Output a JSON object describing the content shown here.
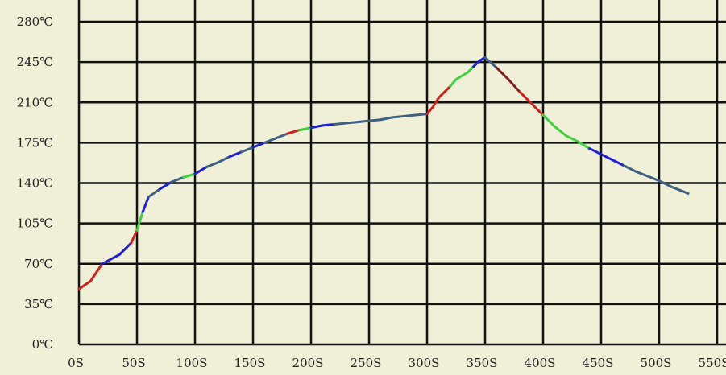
{
  "chart_data": {
    "type": "line",
    "title": "",
    "xlabel": "",
    "ylabel": "",
    "xlim": [
      0,
      550
    ],
    "ylim": [
      0,
      280
    ],
    "grid": true,
    "background": "#f0f0d8",
    "grid_color": "#111111",
    "x_ticks": [
      {
        "value": 0,
        "label": "0S"
      },
      {
        "value": 50,
        "label": "50S"
      },
      {
        "value": 100,
        "label": "100S"
      },
      {
        "value": 150,
        "label": "150S"
      },
      {
        "value": 200,
        "label": "200S"
      },
      {
        "value": 250,
        "label": "250S"
      },
      {
        "value": 300,
        "label": "300S"
      },
      {
        "value": 350,
        "label": "350S"
      },
      {
        "value": 400,
        "label": "400S"
      },
      {
        "value": 450,
        "label": "450S"
      },
      {
        "value": 500,
        "label": "500S"
      },
      {
        "value": 550,
        "label": "550S"
      }
    ],
    "y_ticks": [
      {
        "value": 0,
        "label": "0℃"
      },
      {
        "value": 35,
        "label": "35℃"
      },
      {
        "value": 70,
        "label": "70℃"
      },
      {
        "value": 105,
        "label": "105℃"
      },
      {
        "value": 140,
        "label": "140℃"
      },
      {
        "value": 175,
        "label": "175℃"
      },
      {
        "value": 210,
        "label": "210℃"
      },
      {
        "value": 245,
        "label": "245℃"
      },
      {
        "value": 280,
        "label": "280℃"
      }
    ],
    "x": [
      0,
      10,
      20,
      35,
      45,
      50,
      55,
      60,
      70,
      80,
      90,
      100,
      110,
      120,
      130,
      140,
      150,
      160,
      170,
      180,
      190,
      200,
      210,
      220,
      230,
      240,
      250,
      260,
      270,
      280,
      290,
      300,
      305,
      310,
      320,
      325,
      335,
      340,
      345,
      350,
      360,
      370,
      380,
      390,
      400,
      410,
      420,
      430,
      440,
      450,
      460,
      470,
      480,
      490,
      500,
      510,
      520,
      525
    ],
    "y": [
      48,
      55,
      70,
      78,
      88,
      99,
      115,
      128,
      135,
      141,
      145,
      148,
      154,
      158,
      163,
      167,
      171,
      175,
      179,
      183,
      186,
      188,
      190,
      191,
      192,
      193,
      194,
      195,
      197,
      198,
      199,
      200,
      206,
      214,
      224,
      230,
      236,
      241,
      246,
      249,
      240,
      230,
      219,
      209,
      199,
      189,
      181,
      176,
      170,
      165,
      160,
      155,
      150,
      146,
      142,
      137,
      133,
      131
    ],
    "segment_colors": [
      "#d02020",
      "#d02020",
      "#2020d0",
      "#2020d0",
      "#d02020",
      "#40d040",
      "#2020d0",
      "#406080",
      "#2020d0",
      "#406080",
      "#40d040",
      "#2020d0",
      "#406080",
      "#406080",
      "#2020d0",
      "#406080",
      "#2020d0",
      "#406080",
      "#406080",
      "#d02020",
      "#40d040",
      "#2020d0",
      "#2020d0",
      "#406080",
      "#406080",
      "#406080",
      "#406080",
      "#406080",
      "#406080",
      "#406080",
      "#406080",
      "#d02020",
      "#d02020",
      "#d02020",
      "#40d040",
      "#40d040",
      "#40d040",
      "#2020d0",
      "#2020d0",
      "#406080",
      "#802020",
      "#802020",
      "#d02020",
      "#d02020",
      "#40d040",
      "#40d040",
      "#40d040",
      "#40d040",
      "#2020d0",
      "#2020d0",
      "#2020d0",
      "#406080",
      "#406080",
      "#406080",
      "#406080",
      "#406080",
      "#406080"
    ]
  }
}
